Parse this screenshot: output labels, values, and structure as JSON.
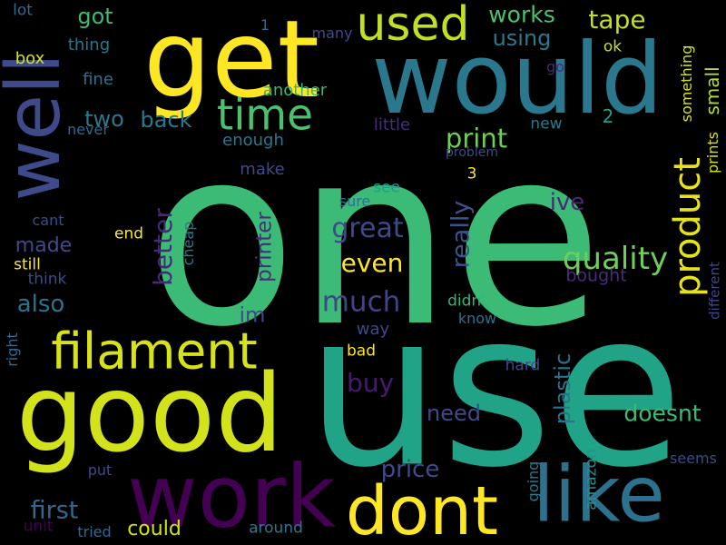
{
  "palette": {
    "background": "#000000",
    "dark_purple": "#440154",
    "purple": "#482677",
    "indigo": "#3b528b",
    "blue": "#2c728e",
    "teal": "#21918c",
    "green_teal": "#28ae80",
    "green": "#5ec962",
    "lime": "#addc30",
    "yellow": "#fde725"
  },
  "words": [
    {
      "text": "one",
      "color": "#3bbb75",
      "vertical": false
    },
    {
      "text": "use",
      "color": "#20a386",
      "vertical": false
    },
    {
      "text": "would",
      "color": "#2a788e",
      "vertical": false
    },
    {
      "text": "get",
      "color": "#fde725",
      "vertical": false
    },
    {
      "text": "good",
      "color": "#d2e21b",
      "vertical": false
    },
    {
      "text": "work",
      "color": "#440154",
      "vertical": false
    },
    {
      "text": "well",
      "color": "#3e4a89",
      "vertical": true
    },
    {
      "text": "like",
      "color": "#2c728e",
      "vertical": false
    },
    {
      "text": "dont",
      "color": "#fde725",
      "vertical": false
    },
    {
      "text": "filament",
      "color": "#d8e219",
      "vertical": false
    },
    {
      "text": "used",
      "color": "#c2df23",
      "vertical": false
    },
    {
      "text": "time",
      "color": "#4ac16d",
      "vertical": false
    },
    {
      "text": "product",
      "color": "#e5e419",
      "vertical": true
    },
    {
      "text": "works",
      "color": "#4ac16d",
      "vertical": false
    },
    {
      "text": "tape",
      "color": "#c2df23",
      "vertical": false
    },
    {
      "text": "got",
      "color": "#3bbb75",
      "vertical": false
    },
    {
      "text": "using",
      "color": "#2a788e",
      "vertical": false
    },
    {
      "text": "quality",
      "color": "#6ece58",
      "vertical": false
    },
    {
      "text": "better",
      "color": "#482878",
      "vertical": true
    },
    {
      "text": "great",
      "color": "#3e4a89",
      "vertical": false
    },
    {
      "text": "even",
      "color": "#fde725",
      "vertical": false
    },
    {
      "text": "much",
      "color": "#414487",
      "vertical": false
    },
    {
      "text": "made",
      "color": "#3e4a89",
      "vertical": false
    },
    {
      "text": "also",
      "color": "#2c728e",
      "vertical": false
    },
    {
      "text": "print",
      "color": "#6ece58",
      "vertical": false
    },
    {
      "text": "printer",
      "color": "#472d7b",
      "vertical": true
    },
    {
      "text": "really",
      "color": "#3b528b",
      "vertical": true
    },
    {
      "text": "plastic",
      "color": "#2c728e",
      "vertical": true
    },
    {
      "text": "buy",
      "color": "#481a6c",
      "vertical": false
    },
    {
      "text": "need",
      "color": "#3e4a89",
      "vertical": false
    },
    {
      "text": "doesnt",
      "color": "#3bbb75",
      "vertical": false
    },
    {
      "text": "price",
      "color": "#3e4a89",
      "vertical": false
    },
    {
      "text": "first",
      "color": "#31688e",
      "vertical": false
    },
    {
      "text": "could",
      "color": "#d2e21b",
      "vertical": false
    },
    {
      "text": "two",
      "color": "#2a788e",
      "vertical": false
    },
    {
      "text": "back",
      "color": "#2a788e",
      "vertical": false
    },
    {
      "text": "ive",
      "color": "#482878",
      "vertical": false
    },
    {
      "text": "im",
      "color": "#3e4a89",
      "vertical": false
    },
    {
      "text": "thing",
      "color": "#2a788e",
      "vertical": false
    },
    {
      "text": "box",
      "color": "#d2e21b",
      "vertical": false
    },
    {
      "text": "fine",
      "color": "#2c728e",
      "vertical": false
    },
    {
      "text": "lot",
      "color": "#31688e",
      "vertical": false
    },
    {
      "text": "many",
      "color": "#3e4a89",
      "vertical": false
    },
    {
      "text": "1",
      "color": "#31688e",
      "vertical": false
    },
    {
      "text": "another",
      "color": "#35b779",
      "vertical": false
    },
    {
      "text": "ok",
      "color": "#c2df23",
      "vertical": false
    },
    {
      "text": "go",
      "color": "#482878",
      "vertical": false
    },
    {
      "text": "small",
      "color": "#b5de2b",
      "vertical": true
    },
    {
      "text": "something",
      "color": "#d2e21b",
      "vertical": true
    },
    {
      "text": "new",
      "color": "#2a788e",
      "vertical": false
    },
    {
      "text": "2",
      "color": "#1fa187",
      "vertical": false
    },
    {
      "text": "little",
      "color": "#472d7b",
      "vertical": false
    },
    {
      "text": "never",
      "color": "#31688e",
      "vertical": false
    },
    {
      "text": "enough",
      "color": "#2a788e",
      "vertical": false
    },
    {
      "text": "problem",
      "color": "#3e4a89",
      "vertical": false
    },
    {
      "text": "prints",
      "color": "#d2e21b",
      "vertical": true
    },
    {
      "text": "make",
      "color": "#3e4a89",
      "vertical": false
    },
    {
      "text": "3",
      "color": "#fde725",
      "vertical": false
    },
    {
      "text": "see",
      "color": "#1fa187",
      "vertical": false
    },
    {
      "text": "sure",
      "color": "#2c728e",
      "vertical": false
    },
    {
      "text": "cant",
      "color": "#3e4a89",
      "vertical": false
    },
    {
      "text": "end",
      "color": "#fde725",
      "vertical": false
    },
    {
      "text": "cheap",
      "color": "#2a788e",
      "vertical": true
    },
    {
      "text": "still",
      "color": "#fde725",
      "vertical": false
    },
    {
      "text": "think",
      "color": "#3e4a89",
      "vertical": false
    },
    {
      "text": "bought",
      "color": "#472d7b",
      "vertical": false
    },
    {
      "text": "didnt",
      "color": "#35b779",
      "vertical": false
    },
    {
      "text": "know",
      "color": "#2c728e",
      "vertical": false
    },
    {
      "text": "different",
      "color": "#414487",
      "vertical": true
    },
    {
      "text": "way",
      "color": "#3e4a89",
      "vertical": false
    },
    {
      "text": "bad",
      "color": "#fde725",
      "vertical": false
    },
    {
      "text": "right",
      "color": "#31688e",
      "vertical": true
    },
    {
      "text": "hard",
      "color": "#3e4a89",
      "vertical": false
    },
    {
      "text": "seems",
      "color": "#3e4a89",
      "vertical": false
    },
    {
      "text": "amazon",
      "color": "#21918c",
      "vertical": true
    },
    {
      "text": "going",
      "color": "#2a788e",
      "vertical": true
    },
    {
      "text": "put",
      "color": "#3e4a89",
      "vertical": false
    },
    {
      "text": "unit",
      "color": "#440154",
      "vertical": false
    },
    {
      "text": "tried",
      "color": "#31688e",
      "vertical": false
    },
    {
      "text": "around",
      "color": "#2a788e",
      "vertical": false
    }
  ]
}
